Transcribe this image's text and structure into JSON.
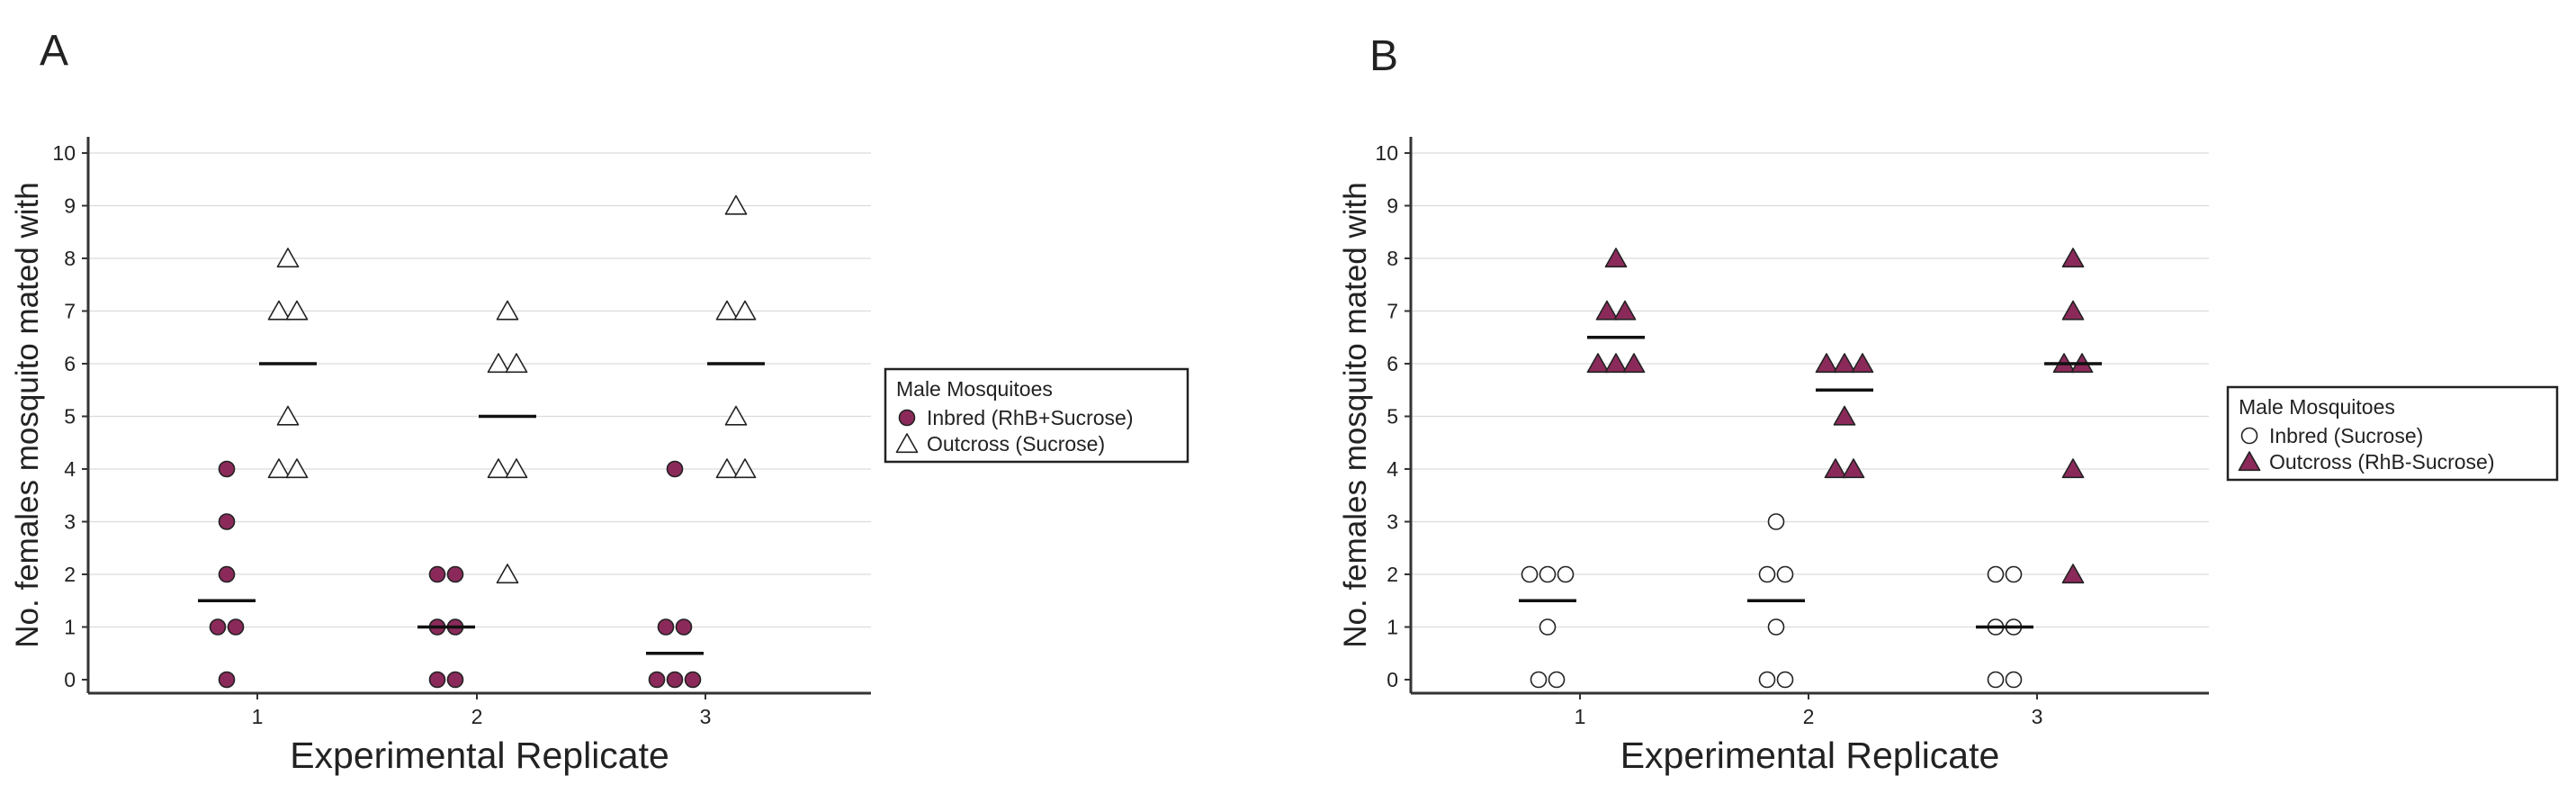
{
  "panels": [
    {
      "letter": "A",
      "legend": {
        "title": "Male Mosquitoes",
        "entries": [
          {
            "label": "Inbred (RhB+Sucrose)",
            "marker": "circle",
            "fill": "#8b2a5a"
          },
          {
            "label": "Outcross (Sucrose)",
            "marker": "triangle",
            "fill": "#ffffff"
          }
        ]
      }
    },
    {
      "letter": "B",
      "legend": {
        "title": "Male Mosquitoes",
        "entries": [
          {
            "label": "Inbred (Sucrose)",
            "marker": "circle",
            "fill": "#ffffff"
          },
          {
            "label": "Outcross (RhB-Sucrose)",
            "marker": "triangle",
            "fill": "#8b2a5a"
          }
        ]
      }
    }
  ],
  "chart_data": [
    {
      "type": "scatter",
      "title": "A",
      "xlabel": "Experimental Replicate",
      "ylabel": "No. females mosquito mated with",
      "categories": [
        "1",
        "2",
        "3"
      ],
      "ylim": [
        0,
        10
      ],
      "yticks": [
        0,
        1,
        2,
        3,
        4,
        5,
        6,
        7,
        8,
        9,
        10
      ],
      "grid": true,
      "legend_position": "right",
      "series": [
        {
          "name": "Inbred (RhB+Sucrose)",
          "marker": "circle",
          "color": "#8b2a5a",
          "values": [
            [
              0,
              1,
              1,
              2,
              3,
              4
            ],
            [
              0,
              0,
              1,
              1,
              2,
              2
            ],
            [
              0,
              0,
              0,
              1,
              1,
              4
            ]
          ],
          "medians": [
            1.5,
            1,
            0.5
          ]
        },
        {
          "name": "Outcross (Sucrose)",
          "marker": "triangle",
          "color": "#ffffff",
          "values": [
            [
              4,
              4,
              5,
              7,
              7,
              8
            ],
            [
              2,
              4,
              4,
              6,
              6,
              7
            ],
            [
              4,
              4,
              5,
              7,
              7,
              9
            ]
          ],
          "medians": [
            6,
            5,
            6
          ]
        }
      ]
    },
    {
      "type": "scatter",
      "title": "B",
      "xlabel": "Experimental Replicate",
      "ylabel": "No. females mosquito mated with",
      "categories": [
        "1",
        "2",
        "3"
      ],
      "ylim": [
        0,
        10
      ],
      "yticks": [
        0,
        1,
        2,
        3,
        4,
        5,
        6,
        7,
        8,
        9,
        10
      ],
      "grid": true,
      "legend_position": "right",
      "series": [
        {
          "name": "Inbred (Sucrose)",
          "marker": "circle",
          "color": "#ffffff",
          "values": [
            [
              0,
              0,
              1,
              2,
              2,
              2
            ],
            [
              0,
              0,
              1,
              2,
              2,
              3
            ],
            [
              0,
              0,
              1,
              1,
              2,
              2
            ]
          ],
          "medians": [
            1.5,
            1.5,
            1
          ]
        },
        {
          "name": "Outcross (RhB-Sucrose)",
          "marker": "triangle",
          "color": "#8b2a5a",
          "values": [
            [
              6,
              6,
              6,
              7,
              7,
              8
            ],
            [
              4,
              4,
              5,
              6,
              6,
              6
            ],
            [
              2,
              4,
              6,
              6,
              7,
              8
            ]
          ],
          "medians": [
            6.5,
            5.5,
            6
          ]
        }
      ]
    }
  ]
}
